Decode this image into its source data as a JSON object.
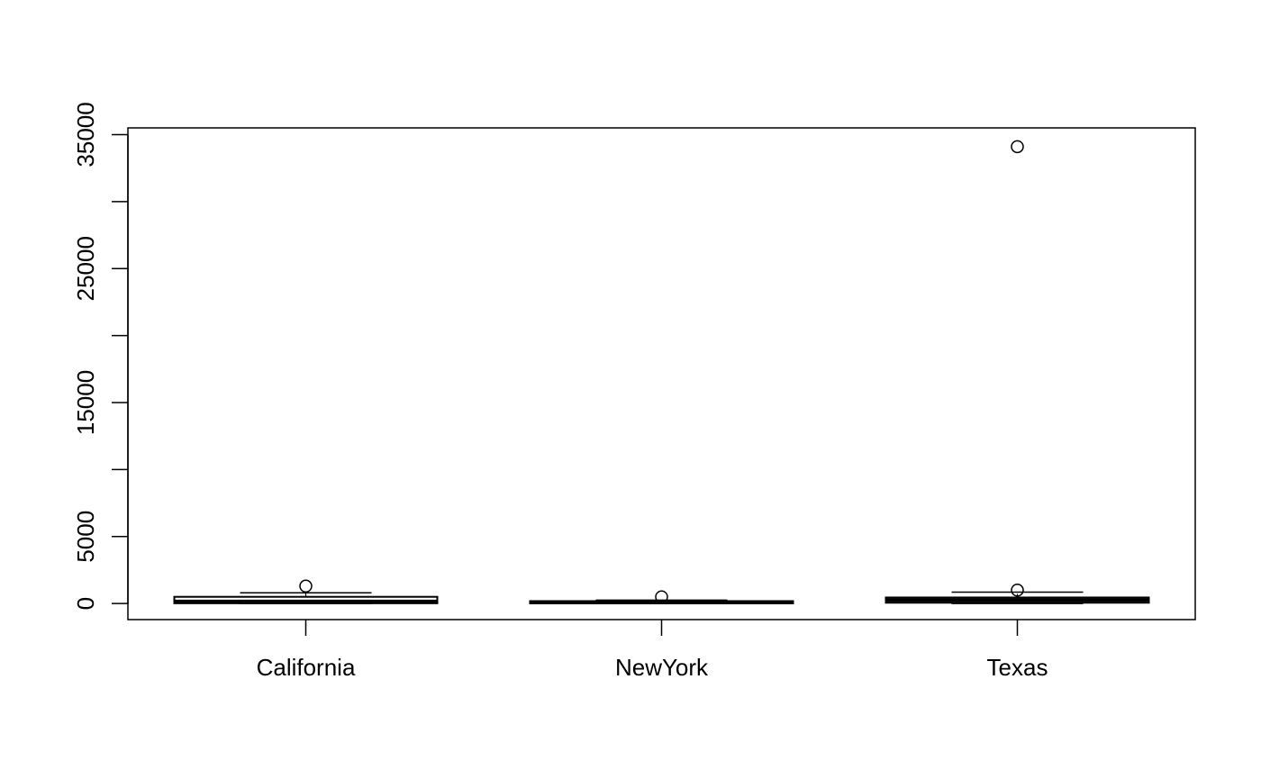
{
  "chart_data": {
    "type": "box",
    "title": "",
    "xlabel": "",
    "ylabel": "",
    "ylim": [
      -1200,
      35500
    ],
    "y_ticks": [
      0,
      5000,
      10000,
      15000,
      20000,
      25000,
      30000,
      35000
    ],
    "y_tick_labels": [
      "0",
      "5000",
      "",
      "15000",
      "",
      "25000",
      "",
      "35000"
    ],
    "categories": [
      "California",
      "NewYork",
      "Texas"
    ],
    "boxes": [
      {
        "category": "California",
        "whisker_low": 0,
        "q1": 20,
        "median": 150,
        "q3": 500,
        "whisker_high": 800,
        "outliers": [
          1300
        ]
      },
      {
        "category": "NewYork",
        "whisker_low": 0,
        "q1": 10,
        "median": 80,
        "q3": 180,
        "whisker_high": 250,
        "outliers": [
          500
        ]
      },
      {
        "category": "Texas",
        "whisker_low": 0,
        "q1": 60,
        "median": 250,
        "q3": 450,
        "whisker_high": 850,
        "outliers": [
          1000,
          34100
        ]
      }
    ],
    "grid": false,
    "legend": "none",
    "color": "#000000"
  }
}
